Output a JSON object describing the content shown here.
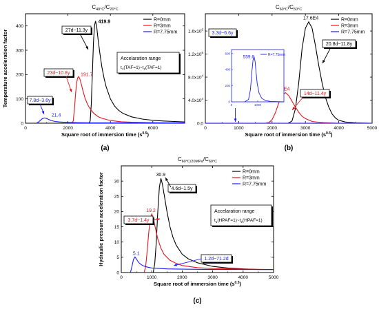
{
  "colors": {
    "black": "#000000",
    "red": "#e8141a",
    "blue": "#1a1aff"
  },
  "chart_data": [
    {
      "type": "line",
      "panel_label": "(a)",
      "title_main": "C",
      "title_sub1": "40°C",
      "title_mid": "/C",
      "title_sub2": "20°C",
      "xlabel": "Square root of immersion time (s",
      "xlabel_sup": "0.5",
      "xlabel_end": ")",
      "ylabel": "Temperature acceleration factor",
      "xlim": [
        0,
        7500
      ],
      "ylim": [
        0,
        450
      ],
      "xticks": [
        "0",
        "2000",
        "4000",
        "6000"
      ],
      "xtick_values": [
        0,
        2000,
        4000,
        6000
      ],
      "yticks": [
        "0",
        "100",
        "200",
        "300",
        "400"
      ],
      "ytick_values": [
        0,
        100,
        200,
        300,
        400
      ],
      "legend": [
        "R=0mm",
        "R=3mm",
        "R=7.75mm"
      ],
      "series": [
        {
          "name": "R=0mm",
          "color": "black",
          "x": [
            3000,
            3050,
            3100,
            3150,
            3200,
            3250,
            3300,
            3350,
            3400,
            3500,
            3600,
            3700,
            3800,
            4000,
            4200,
            4400,
            4600,
            5000,
            5500,
            6000,
            6500,
            7000,
            7500
          ],
          "y": [
            0,
            10,
            80,
            200,
            330,
            400,
            419.9,
            400,
            360,
            290,
            230,
            185,
            150,
            100,
            70,
            52,
            40,
            26,
            17,
            12,
            9,
            7,
            5
          ]
        },
        {
          "name": "R=3mm",
          "color": "red",
          "x": [
            2200,
            2250,
            2300,
            2350,
            2400,
            2450,
            2500,
            2550,
            2600,
            2700,
            2800,
            2900,
            3000,
            3200,
            3400,
            3600,
            4000,
            4500,
            5000,
            5500,
            6000,
            7000,
            7500
          ],
          "y": [
            0,
            10,
            50,
            110,
            160,
            185,
            191.7,
            185,
            170,
            135,
            105,
            82,
            65,
            42,
            28,
            20,
            11,
            6,
            4,
            3,
            2,
            1,
            1
          ]
        },
        {
          "name": "R=7.75mm",
          "color": "blue",
          "x": [
            500,
            600,
            700,
            800,
            900,
            1000,
            1100,
            1200,
            1400,
            1600,
            2000,
            2500,
            3000,
            4000,
            5000,
            6000,
            7500
          ],
          "y": [
            0,
            4,
            12,
            19,
            21.4,
            19,
            15,
            11,
            7,
            5,
            3,
            2,
            1.5,
            1,
            1,
            1,
            1
          ]
        }
      ],
      "annotations": [
        {
          "text": "419.9",
          "color": "black"
        },
        {
          "text": "27d~11.3y",
          "color": "black"
        },
        {
          "text": "191.7",
          "color": "red"
        },
        {
          "text": "23d~10.8y",
          "color": "red"
        },
        {
          "text": "21.4",
          "color": "blue"
        },
        {
          "text": "7.8d~3.6y",
          "color": "blue"
        }
      ],
      "note_title": "Accelaration range",
      "note_formula": "t",
      "note_s1": "1",
      "note_f1": "(TAF=1)~t",
      "note_s2": "2",
      "note_f2": "(TAF=1)"
    },
    {
      "type": "line",
      "panel_label": "(b)",
      "title_main": "C",
      "title_sub1": "60°C",
      "title_mid": "/C",
      "title_sub2": "50°C",
      "xlabel": "Square root of immersion time (s",
      "xlabel_sup": "0.5",
      "xlabel_end": ")",
      "ylabel": "",
      "xlim": [
        0,
        5000
      ],
      "ylim": [
        0,
        190000
      ],
      "xticks": [
        "0",
        "1000",
        "2000",
        "3000",
        "4000",
        "5000"
      ],
      "xtick_values": [
        0,
        1000,
        2000,
        3000,
        4000,
        5000
      ],
      "ytick_values": [
        0,
        40000,
        80000,
        120000,
        160000
      ],
      "ytick_base": [
        "0.0",
        "4.0x10",
        "8.0x10",
        "1.2x10",
        "1.6x10"
      ],
      "ytick_exp": [
        "",
        "4",
        "4",
        "5",
        "5"
      ],
      "legend": [
        "R=0mm",
        "R=3mm",
        "R=7.75mm"
      ],
      "series": [
        {
          "name": "R=0mm",
          "color": "black",
          "x": [
            2500,
            2600,
            2700,
            2800,
            2900,
            3000,
            3100,
            3200,
            3300,
            3400,
            3500,
            3600,
            3700,
            3800,
            3900,
            4000,
            4200,
            4500,
            5000
          ],
          "y": [
            0,
            4000,
            25000,
            70000,
            130000,
            165000,
            176000,
            165000,
            135000,
            100000,
            70000,
            45000,
            28000,
            16000,
            9000,
            5000,
            2000,
            500,
            0
          ]
        },
        {
          "name": "R=3mm",
          "color": "red",
          "x": [
            1800,
            1900,
            2000,
            2100,
            2200,
            2300,
            2400,
            2500,
            2600,
            2700,
            2800,
            2900,
            3000,
            3200,
            3500,
            4000,
            5000
          ],
          "y": [
            0,
            1000,
            6000,
            18000,
            35000,
            48000,
            53000,
            48000,
            38000,
            28000,
            19000,
            12000,
            8000,
            3000,
            1000,
            0,
            0
          ]
        },
        {
          "name": "R=7.75mm",
          "color": "blue",
          "x": [
            0,
            5000
          ],
          "y": [
            0,
            0
          ]
        }
      ],
      "annotations": [
        {
          "text": "17.6E4",
          "color": "black"
        },
        {
          "text": "20.8d~11.8y",
          "color": "black"
        },
        {
          "text": "5.3E4",
          "color": "red"
        },
        {
          "text": "14d~11.4y",
          "color": "red"
        },
        {
          "text": "3.3d~6.6y",
          "color": "blue"
        }
      ],
      "inset": {
        "peak_label": "559.6",
        "legend": "R=7.75mm",
        "xlim": [
          0,
          2000
        ],
        "ylim": [
          0,
          650
        ],
        "xticks": [
          "0",
          "1000"
        ],
        "xtick_values": [
          0,
          1000
        ],
        "yticks": [
          "0",
          "200",
          "400",
          "600"
        ],
        "ytick_values": [
          0,
          200,
          400,
          600
        ],
        "x": [
          500,
          650,
          720,
          780,
          820,
          860,
          900,
          940,
          980,
          1050,
          1150,
          1300,
          1500,
          2000
        ],
        "y": [
          0,
          30,
          150,
          380,
          520,
          559.6,
          500,
          360,
          230,
          110,
          45,
          15,
          5,
          0
        ]
      }
    },
    {
      "type": "line",
      "panel_label": "(c)",
      "title_main": "C",
      "title_sub1": "60°C/20MPa",
      "title_mid": "/C",
      "title_sub2": "60°C",
      "xlabel": "Square root of immersion time (s",
      "xlabel_sup": "0.5",
      "xlabel_end": ")",
      "ylabel": "Hydraulic pressure acceleration factor",
      "xlim": [
        0,
        5000
      ],
      "ylim": [
        0,
        35
      ],
      "xticks": [
        "0",
        "1000",
        "2000",
        "3000",
        "4000",
        "5000"
      ],
      "xtick_values": [
        0,
        1000,
        2000,
        3000,
        4000,
        5000
      ],
      "yticks": [
        "0",
        "5",
        "10",
        "15",
        "20",
        "25",
        "30"
      ],
      "ytick_values": [
        0,
        5,
        10,
        15,
        20,
        25,
        30
      ],
      "legend": [
        "R=0mm",
        "R=3mm",
        "R=7.75mm"
      ],
      "series": [
        {
          "name": "R=0mm",
          "color": "black",
          "x": [
            1050,
            1100,
            1150,
            1200,
            1250,
            1300,
            1350,
            1400,
            1500,
            1600,
            1700,
            1800,
            2000,
            2200,
            2500,
            3000,
            3500,
            4000,
            4500,
            5000
          ],
          "y": [
            0,
            3,
            10,
            20,
            28,
            30.9,
            29,
            26,
            20,
            15,
            11.5,
            9,
            6,
            4.5,
            3.2,
            2,
            1.5,
            1.2,
            1,
            1
          ]
        },
        {
          "name": "R=3mm",
          "color": "red",
          "x": [
            750,
            800,
            850,
            900,
            950,
            1000,
            1050,
            1100,
            1200,
            1300,
            1400,
            1600,
            1800,
            2000,
            2500,
            3000,
            4000,
            5000
          ],
          "y": [
            0,
            2,
            7,
            13,
            17.5,
            19.2,
            18,
            15.5,
            11,
            8,
            6,
            4,
            3,
            2.3,
            1.6,
            1.3,
            1.1,
            1
          ]
        },
        {
          "name": "R=7.75mm",
          "color": "blue",
          "x": [
            300,
            350,
            400,
            450,
            500,
            550,
            600,
            700,
            800,
            1000,
            1500,
            2000,
            3000,
            4000,
            5000
          ],
          "y": [
            0,
            2,
            4.3,
            5.1,
            4.4,
            3.6,
            3,
            2.3,
            1.9,
            1.5,
            1.2,
            1.1,
            1,
            1,
            1
          ]
        }
      ],
      "annotations": [
        {
          "text": "30.9",
          "color": "black"
        },
        {
          "text": "4.6d~1.5y",
          "color": "black"
        },
        {
          "text": "19.2",
          "color": "red"
        },
        {
          "text": "3.7d~1.4y",
          "color": "red"
        },
        {
          "text": "5.1",
          "color": "blue"
        },
        {
          "text": "1.2d~71.2d",
          "color": "blue"
        }
      ],
      "note_title": "Accelaration range",
      "note_formula": "t",
      "note_s1": "1",
      "note_f1": "(HPAF=1)~t",
      "note_s2": "2",
      "note_f2": "(HPAF=1)"
    }
  ]
}
